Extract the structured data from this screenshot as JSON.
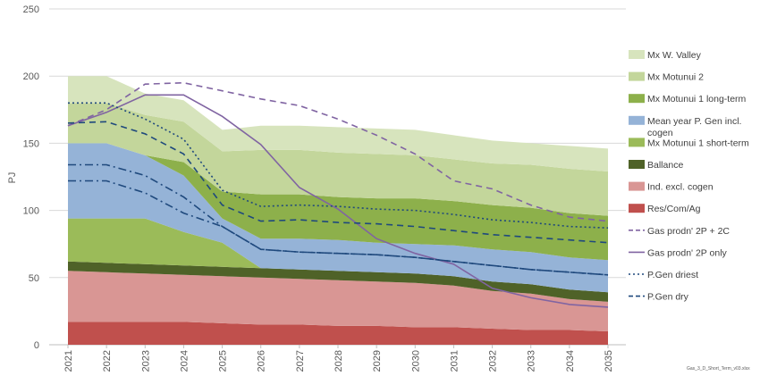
{
  "chart_data": {
    "type": "area",
    "ylabel": "PJ",
    "ylim": [
      0,
      250
    ],
    "yticks": [
      0,
      50,
      100,
      150,
      200,
      250
    ],
    "grid": true,
    "legend_position": "right",
    "x": [
      "2021",
      "2022",
      "2023",
      "2024",
      "2025",
      "2026",
      "2027",
      "2028",
      "2029",
      "2030",
      "2031",
      "2032",
      "2033",
      "2034",
      "2035"
    ],
    "stacked_series": [
      {
        "name": "Res/Com/Ag",
        "color": "#c0504d",
        "values": [
          17,
          17,
          17,
          17,
          16,
          15,
          15,
          14,
          14,
          13,
          13,
          12,
          11,
          11,
          10
        ]
      },
      {
        "name": "Ind. excl. cogen",
        "color": "#d99694",
        "values": [
          38,
          37,
          36,
          35,
          35,
          35,
          34,
          34,
          33,
          33,
          31,
          28,
          27,
          23,
          22
        ]
      },
      {
        "name": "Ballance",
        "color": "#4f6228",
        "values": [
          7,
          7,
          7,
          7,
          7,
          7,
          7,
          7,
          7,
          7,
          7,
          7,
          7,
          7,
          7
        ]
      },
      {
        "name": "Mx Motunui 1 short-term",
        "color": "#9bbb59",
        "values": [
          32,
          33,
          34,
          25,
          18,
          0,
          0,
          0,
          0,
          0,
          0,
          0,
          0,
          0,
          0
        ]
      },
      {
        "name": "Mean year P. Gen incl. cogen",
        "color": "#95b3d7",
        "values": [
          56,
          56,
          47,
          42,
          18,
          22,
          23,
          23,
          22,
          22,
          23,
          24,
          24,
          24,
          24
        ]
      },
      {
        "name": "Mx Motunui 1 long-term",
        "color": "#8db04b",
        "values": [
          0,
          0,
          0,
          10,
          20,
          33,
          33,
          32,
          33,
          34,
          33,
          33,
          33,
          33,
          33
        ]
      },
      {
        "name": "Mx Motunui 2",
        "color": "#c3d69b",
        "values": [
          30,
          30,
          30,
          30,
          30,
          33,
          33,
          33,
          33,
          32,
          31,
          31,
          32,
          33,
          33
        ]
      },
      {
        "name": "Mx W. Valley",
        "color": "#d7e4bd",
        "values": [
          20,
          20,
          16,
          16,
          16,
          18,
          18,
          19,
          19,
          19,
          18,
          17,
          16,
          17,
          17
        ]
      }
    ],
    "line_series": [
      {
        "name": "Gas prodn' 2P + 2C",
        "color": "#8064a2",
        "dash": "dash",
        "values": [
          163,
          175,
          194,
          195,
          189,
          183,
          178,
          168,
          156,
          142,
          122,
          116,
          104,
          95,
          92
        ]
      },
      {
        "name": "Gas prodn' 2P only",
        "color": "#8064a2",
        "dash": "solid",
        "values": [
          163,
          173,
          186,
          186,
          170,
          149,
          117,
          101,
          79,
          68,
          60,
          42,
          35,
          30,
          28
        ]
      },
      {
        "name": "P.Gen driest",
        "color": "#1f497d",
        "dash": "dot",
        "values": [
          180,
          180,
          168,
          153,
          115,
          103,
          104,
          103,
          101,
          100,
          97,
          93,
          91,
          88,
          87
        ]
      },
      {
        "name": "P.Gen dry",
        "color": "#1f497d",
        "dash": "dash",
        "values": [
          165,
          166,
          157,
          142,
          104,
          92,
          93,
          91,
          90,
          88,
          85,
          82,
          80,
          78,
          76
        ]
      },
      {
        "name": "",
        "color": "#1f497d",
        "dash": "dashdot",
        "values": [
          134,
          134,
          126,
          110,
          88,
          71,
          69,
          68,
          67,
          65,
          62,
          59,
          56,
          54,
          52
        ]
      },
      {
        "name": "",
        "color": "#1f497d",
        "dash": "dashdot",
        "values": [
          122,
          122,
          113,
          98,
          88,
          71,
          69,
          68,
          67,
          65,
          62,
          59,
          56,
          54,
          52
        ]
      }
    ],
    "legend": [
      {
        "label": "Mx W. Valley",
        "kind": "box",
        "color": "#d7e4bd"
      },
      {
        "label": "Mx Motunui 2",
        "kind": "box",
        "color": "#c3d69b"
      },
      {
        "label": "Mx Motunui 1 long-term",
        "kind": "box",
        "color": "#8db04b"
      },
      {
        "label": "Mean year P. Gen incl.",
        "label2": "cogen",
        "kind": "box",
        "color": "#95b3d7"
      },
      {
        "label": "Mx Motunui 1 short-term",
        "kind": "box",
        "color": "#9bbb59"
      },
      {
        "label": "Ballance",
        "kind": "box",
        "color": "#4f6228"
      },
      {
        "label": "Ind. excl. cogen",
        "kind": "box",
        "color": "#d99694"
      },
      {
        "label": "Res/Com/Ag",
        "kind": "box",
        "color": "#c0504d"
      },
      {
        "label": "Gas prodn' 2P + 2C",
        "kind": "line",
        "color": "#8064a2",
        "dash": "dash"
      },
      {
        "label": "Gas prodn' 2P only",
        "kind": "line",
        "color": "#8064a2",
        "dash": "solid"
      },
      {
        "label": "P.Gen driest",
        "kind": "line",
        "color": "#1f497d",
        "dash": "dot"
      },
      {
        "label": "P.Gen dry",
        "kind": "line",
        "color": "#1f497d",
        "dash": "dash"
      }
    ],
    "footnote": "Gas_3_D_Short_Term_v03.xlsx"
  }
}
